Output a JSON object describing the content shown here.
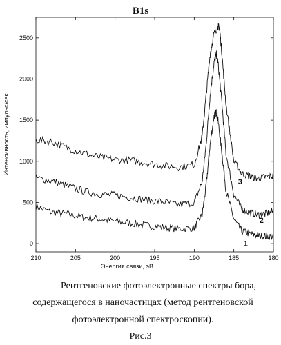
{
  "figure": {
    "title": "B1s",
    "caption_lines": [
      "Рентгеновские фотоэлектронные спектры бора,",
      "содержащегося в наночастицах  (метод рентгеновской",
      "фотоэлектронной спектроскопии)."
    ],
    "figure_label": "Рис.3"
  },
  "chart_data": {
    "type": "line",
    "title": "B1s",
    "xlabel": "Энергия связи, эВ",
    "ylabel": "Интенсивность, импульс/сек",
    "xlim": [
      210,
      180
    ],
    "ylim": [
      -100,
      2750
    ],
    "x_reversed": true,
    "xticks": [
      210,
      205,
      200,
      195,
      190,
      185,
      180
    ],
    "yticks": [
      0,
      500,
      1000,
      1500,
      2000,
      2500
    ],
    "grid": false,
    "legend": "none",
    "series": [
      {
        "name": "1",
        "x": [
          210,
          208,
          206,
          204,
          202,
          200,
          198,
          196,
          194,
          192,
          190,
          189,
          188.5,
          188,
          187.5,
          187.2,
          187,
          186.5,
          186,
          185,
          184,
          183,
          182,
          181,
          180
        ],
        "y": [
          450,
          380,
          360,
          320,
          300,
          270,
          250,
          220,
          200,
          180,
          190,
          350,
          700,
          1200,
          1550,
          1600,
          1500,
          1100,
          650,
          300,
          150,
          120,
          100,
          90,
          90
        ]
      },
      {
        "name": "2",
        "x": [
          210,
          208,
          206,
          204,
          202,
          200,
          198,
          196,
          194,
          192,
          190,
          189,
          188.5,
          188,
          187.5,
          187.2,
          187,
          186.5,
          186,
          185,
          184,
          183,
          182,
          181,
          180
        ],
        "y": [
          800,
          760,
          700,
          640,
          600,
          590,
          560,
          530,
          510,
          470,
          500,
          750,
          1200,
          1800,
          2200,
          2300,
          2200,
          1700,
          1100,
          600,
          420,
          380,
          350,
          360,
          390
        ]
      },
      {
        "name": "3",
        "x": [
          210,
          208,
          206,
          204,
          202,
          200,
          198,
          196,
          194,
          192,
          190,
          189,
          188.5,
          188,
          187.5,
          187,
          186.8,
          186.5,
          186,
          185,
          184,
          183,
          182,
          181,
          180
        ],
        "y": [
          1260,
          1240,
          1160,
          1100,
          1050,
          1020,
          1010,
          980,
          950,
          930,
          960,
          1300,
          1800,
          2300,
          2550,
          2640,
          2620,
          2300,
          1700,
          1000,
          850,
          820,
          790,
          810,
          820
        ]
      }
    ],
    "series_labels": [
      "1",
      "2",
      "3"
    ]
  }
}
